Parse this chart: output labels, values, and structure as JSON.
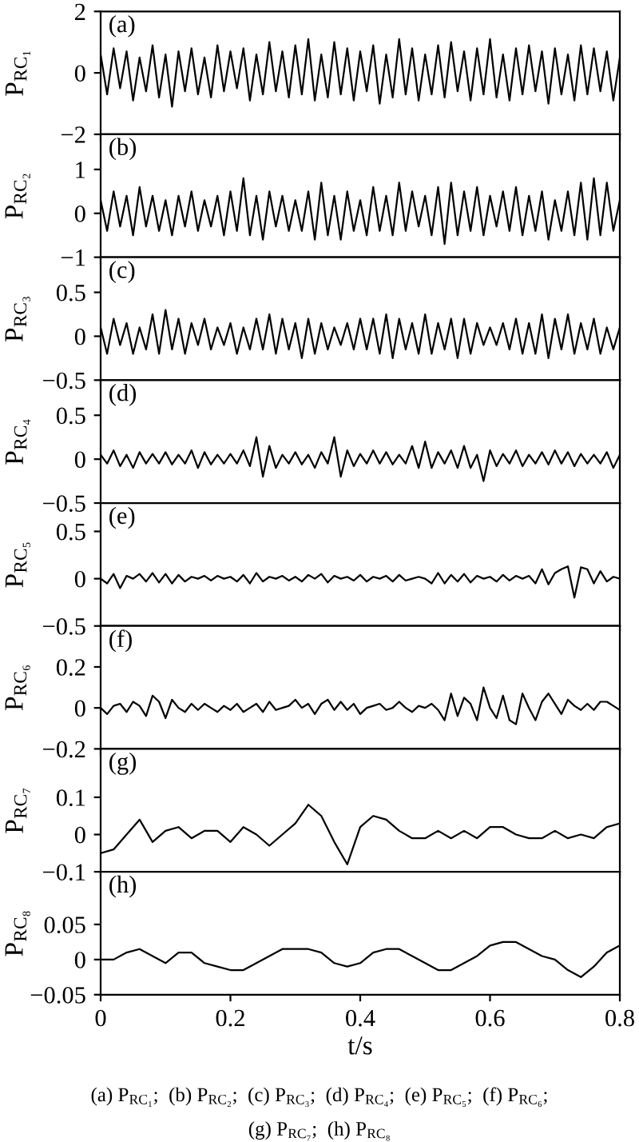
{
  "chart_data": [
    {
      "type": "line",
      "xlim": [
        0,
        0.8
      ],
      "xticks": [
        0,
        0.2,
        0.4,
        0.6,
        0.8
      ],
      "tick_labels": "y",
      "ylabel": "P$_{RC₁}$",
      "ylim": [
        -2,
        2
      ],
      "yticks": [
        -2,
        0,
        2
      ],
      "annotations": [
        "(a)"
      ],
      "x": [
        0,
        0.01,
        0.02,
        0.03,
        0.04,
        0.05,
        0.06,
        0.07,
        0.08,
        0.09,
        0.1,
        0.11,
        0.12,
        0.13,
        0.14,
        0.15,
        0.16,
        0.17,
        0.18,
        0.19,
        0.2,
        0.21,
        0.22,
        0.23,
        0.24,
        0.25,
        0.26,
        0.27,
        0.28,
        0.29,
        0.3,
        0.31,
        0.32,
        0.33,
        0.34,
        0.35,
        0.36,
        0.37,
        0.38,
        0.39,
        0.4,
        0.41,
        0.42,
        0.43,
        0.44,
        0.45,
        0.46,
        0.47,
        0.48,
        0.49,
        0.5,
        0.51,
        0.52,
        0.53,
        0.54,
        0.55,
        0.56,
        0.57,
        0.58,
        0.59,
        0.6,
        0.61,
        0.62,
        0.63,
        0.64,
        0.65,
        0.66,
        0.67,
        0.68,
        0.69,
        0.7,
        0.71,
        0.72,
        0.73,
        0.74,
        0.75,
        0.76,
        0.77,
        0.78,
        0.79,
        0.8
      ],
      "series": [
        {
          "color": "#000000",
          "values": [
            0.6,
            -0.7,
            0.8,
            -0.5,
            0.7,
            -0.9,
            0.5,
            -0.6,
            0.9,
            -0.8,
            0.6,
            -1.1,
            0.7,
            -0.6,
            0.8,
            -0.7,
            0.5,
            -0.8,
            0.9,
            -0.6,
            0.7,
            -0.5,
            0.8,
            -0.9,
            0.6,
            -0.7,
            1.0,
            -0.6,
            0.7,
            -0.8,
            0.9,
            -0.7,
            1.1,
            -0.9,
            0.6,
            -0.8,
            1.0,
            -0.7,
            0.8,
            -0.9,
            0.7,
            -0.6,
            0.9,
            -1.0,
            0.6,
            -0.8,
            1.1,
            -0.7,
            0.8,
            -0.9,
            0.6,
            -0.7,
            0.9,
            -0.8,
            1.0,
            -0.6,
            0.7,
            -0.9,
            0.8,
            -0.7,
            1.1,
            -0.8,
            0.6,
            -0.9,
            0.8,
            -0.7,
            0.9,
            -0.6,
            0.7,
            -1.0,
            0.8,
            -0.7,
            0.6,
            -0.9,
            0.9,
            -0.7,
            0.8,
            -0.6,
            0.7,
            -0.9,
            0.5
          ]
        }
      ]
    },
    {
      "type": "line",
      "xlim": [
        0,
        0.8
      ],
      "xticks": [
        0,
        0.2,
        0.4,
        0.6,
        0.8
      ],
      "tick_labels": "y",
      "ylabel": "P$_{RC₂}$",
      "ylim": [
        -1,
        1.8
      ],
      "yticks": [
        -1,
        0,
        1
      ],
      "annotations": [
        "(b)"
      ],
      "x": [
        0,
        0.01,
        0.02,
        0.03,
        0.04,
        0.05,
        0.06,
        0.07,
        0.08,
        0.09,
        0.1,
        0.11,
        0.12,
        0.13,
        0.14,
        0.15,
        0.16,
        0.17,
        0.18,
        0.19,
        0.2,
        0.21,
        0.22,
        0.23,
        0.24,
        0.25,
        0.26,
        0.27,
        0.28,
        0.29,
        0.3,
        0.31,
        0.32,
        0.33,
        0.34,
        0.35,
        0.36,
        0.37,
        0.38,
        0.39,
        0.4,
        0.41,
        0.42,
        0.43,
        0.44,
        0.45,
        0.46,
        0.47,
        0.48,
        0.49,
        0.5,
        0.51,
        0.52,
        0.53,
        0.54,
        0.55,
        0.56,
        0.57,
        0.58,
        0.59,
        0.6,
        0.61,
        0.62,
        0.63,
        0.64,
        0.65,
        0.66,
        0.67,
        0.68,
        0.69,
        0.7,
        0.71,
        0.72,
        0.73,
        0.74,
        0.75,
        0.76,
        0.77,
        0.78,
        0.79,
        0.8
      ],
      "series": [
        {
          "color": "#000000",
          "values": [
            0.3,
            -0.4,
            0.5,
            -0.3,
            0.4,
            -0.5,
            0.6,
            -0.3,
            0.4,
            -0.4,
            0.3,
            -0.5,
            0.4,
            -0.3,
            0.5,
            -0.4,
            0.3,
            -0.3,
            0.4,
            -0.5,
            0.5,
            -0.4,
            0.8,
            -0.5,
            0.4,
            -0.6,
            0.5,
            -0.3,
            0.4,
            -0.4,
            0.3,
            -0.4,
            0.5,
            -0.6,
            0.7,
            -0.5,
            0.4,
            -0.6,
            0.5,
            -0.4,
            0.3,
            -0.5,
            0.6,
            -0.4,
            0.4,
            -0.5,
            0.7,
            -0.4,
            0.5,
            -0.3,
            0.4,
            -0.5,
            0.6,
            -0.7,
            0.7,
            -0.5,
            0.5,
            -0.4,
            0.6,
            -0.5,
            0.4,
            -0.3,
            0.5,
            -0.4,
            0.6,
            -0.5,
            0.4,
            -0.4,
            0.5,
            -0.6,
            0.3,
            -0.4,
            0.5,
            -0.5,
            0.7,
            -0.6,
            0.8,
            -0.5,
            0.7,
            -0.4,
            0.3
          ]
        }
      ]
    },
    {
      "type": "line",
      "xlim": [
        0,
        0.8
      ],
      "xticks": [
        0,
        0.2,
        0.4,
        0.6,
        0.8
      ],
      "tick_labels": "y",
      "ylabel": "P$_{RC₃}$",
      "ylim": [
        -0.5,
        0.9
      ],
      "yticks": [
        -0.5,
        0,
        0.5
      ],
      "annotations": [
        "(c)"
      ],
      "x": [
        0,
        0.01,
        0.02,
        0.03,
        0.04,
        0.05,
        0.06,
        0.07,
        0.08,
        0.09,
        0.1,
        0.11,
        0.12,
        0.13,
        0.14,
        0.15,
        0.16,
        0.17,
        0.18,
        0.19,
        0.2,
        0.21,
        0.22,
        0.23,
        0.24,
        0.25,
        0.26,
        0.27,
        0.28,
        0.29,
        0.3,
        0.31,
        0.32,
        0.33,
        0.34,
        0.35,
        0.36,
        0.37,
        0.38,
        0.39,
        0.4,
        0.41,
        0.42,
        0.43,
        0.44,
        0.45,
        0.46,
        0.47,
        0.48,
        0.49,
        0.5,
        0.51,
        0.52,
        0.53,
        0.54,
        0.55,
        0.56,
        0.57,
        0.58,
        0.59,
        0.6,
        0.61,
        0.62,
        0.63,
        0.64,
        0.65,
        0.66,
        0.67,
        0.68,
        0.69,
        0.7,
        0.71,
        0.72,
        0.73,
        0.74,
        0.75,
        0.76,
        0.77,
        0.78,
        0.79,
        0.8
      ],
      "series": [
        {
          "color": "#000000",
          "values": [
            0.1,
            -0.2,
            0.2,
            -0.1,
            0.15,
            -0.2,
            0.1,
            -0.15,
            0.25,
            -0.2,
            0.3,
            -0.15,
            0.2,
            -0.2,
            0.15,
            -0.1,
            0.2,
            -0.15,
            0.1,
            -0.1,
            0.15,
            -0.2,
            0.1,
            -0.15,
            0.2,
            -0.15,
            0.25,
            -0.2,
            0.2,
            -0.15,
            0.15,
            -0.25,
            0.2,
            -0.2,
            0.15,
            -0.15,
            0.1,
            -0.1,
            0.15,
            -0.15,
            0.2,
            -0.15,
            0.2,
            -0.2,
            0.25,
            -0.25,
            0.2,
            -0.15,
            0.15,
            -0.2,
            0.25,
            -0.2,
            0.15,
            -0.15,
            0.2,
            -0.25,
            0.2,
            -0.2,
            0.15,
            -0.1,
            0.1,
            -0.1,
            0.15,
            -0.15,
            0.2,
            -0.2,
            0.15,
            -0.2,
            0.25,
            -0.25,
            0.2,
            -0.15,
            0.25,
            -0.2,
            0.15,
            -0.15,
            0.2,
            -0.2,
            0.1,
            -0.15,
            0.1
          ]
        }
      ]
    },
    {
      "type": "line",
      "xlim": [
        0,
        0.8
      ],
      "xticks": [
        0,
        0.2,
        0.4,
        0.6,
        0.8
      ],
      "tick_labels": "y",
      "ylabel": "P$_{RC₄}$",
      "ylim": [
        -0.5,
        0.9
      ],
      "yticks": [
        -0.5,
        0,
        0.5
      ],
      "annotations": [
        "(d)"
      ],
      "x": [
        0,
        0.01,
        0.02,
        0.03,
        0.04,
        0.05,
        0.06,
        0.07,
        0.08,
        0.09,
        0.1,
        0.11,
        0.12,
        0.13,
        0.14,
        0.15,
        0.16,
        0.17,
        0.18,
        0.19,
        0.2,
        0.21,
        0.22,
        0.23,
        0.24,
        0.25,
        0.26,
        0.27,
        0.28,
        0.29,
        0.3,
        0.31,
        0.32,
        0.33,
        0.34,
        0.35,
        0.36,
        0.37,
        0.38,
        0.39,
        0.4,
        0.41,
        0.42,
        0.43,
        0.44,
        0.45,
        0.46,
        0.47,
        0.48,
        0.49,
        0.5,
        0.51,
        0.52,
        0.53,
        0.54,
        0.55,
        0.56,
        0.57,
        0.58,
        0.59,
        0.6,
        0.61,
        0.62,
        0.63,
        0.64,
        0.65,
        0.66,
        0.67,
        0.68,
        0.69,
        0.7,
        0.71,
        0.72,
        0.73,
        0.74,
        0.75,
        0.76,
        0.77,
        0.78,
        0.79,
        0.8
      ],
      "series": [
        {
          "color": "#000000",
          "values": [
            0.05,
            -0.05,
            0.1,
            -0.08,
            0.05,
            -0.1,
            0.08,
            -0.05,
            0.06,
            -0.05,
            0.08,
            -0.06,
            0.05,
            -0.05,
            0.1,
            -0.1,
            0.08,
            -0.06,
            0.05,
            -0.05,
            0.06,
            -0.05,
            0.1,
            -0.08,
            0.25,
            -0.2,
            0.15,
            -0.1,
            0.05,
            -0.05,
            0.08,
            -0.06,
            0.05,
            -0.1,
            0.08,
            -0.05,
            0.25,
            -0.2,
            0.1,
            -0.08,
            0.06,
            -0.05,
            0.1,
            -0.05,
            0.08,
            -0.06,
            0.05,
            -0.05,
            0.15,
            -0.1,
            0.2,
            -0.1,
            0.08,
            -0.05,
            0.1,
            -0.1,
            0.15,
            -0.1,
            0.05,
            -0.25,
            0.1,
            -0.08,
            0.06,
            -0.05,
            0.1,
            -0.08,
            0.05,
            -0.05,
            0.08,
            -0.06,
            0.1,
            -0.05,
            0.08,
            -0.08,
            0.06,
            -0.05,
            0.05,
            -0.05,
            0.08,
            -0.1,
            0.05
          ]
        }
      ]
    },
    {
      "type": "line",
      "xlim": [
        0,
        0.8
      ],
      "xticks": [
        0,
        0.2,
        0.4,
        0.6,
        0.8
      ],
      "tick_labels": "y",
      "ylabel": "P$_{RC₅}$",
      "ylim": [
        -0.5,
        0.8
      ],
      "yticks": [
        -0.5,
        0,
        0.5
      ],
      "annotations": [
        "(e)"
      ],
      "x": [
        0,
        0.01,
        0.02,
        0.03,
        0.04,
        0.05,
        0.06,
        0.07,
        0.08,
        0.09,
        0.1,
        0.11,
        0.12,
        0.13,
        0.14,
        0.15,
        0.16,
        0.17,
        0.18,
        0.19,
        0.2,
        0.21,
        0.22,
        0.23,
        0.24,
        0.25,
        0.26,
        0.27,
        0.28,
        0.29,
        0.3,
        0.31,
        0.32,
        0.33,
        0.34,
        0.35,
        0.36,
        0.37,
        0.38,
        0.39,
        0.4,
        0.41,
        0.42,
        0.43,
        0.44,
        0.45,
        0.46,
        0.47,
        0.48,
        0.49,
        0.5,
        0.51,
        0.52,
        0.53,
        0.54,
        0.55,
        0.56,
        0.57,
        0.58,
        0.59,
        0.6,
        0.61,
        0.62,
        0.63,
        0.64,
        0.65,
        0.66,
        0.67,
        0.68,
        0.69,
        0.7,
        0.71,
        0.72,
        0.73,
        0.74,
        0.75,
        0.76,
        0.77,
        0.78,
        0.79,
        0.8
      ],
      "series": [
        {
          "color": "#000000",
          "values": [
            0,
            -0.05,
            0.05,
            -0.1,
            0.03,
            0,
            0.05,
            -0.03,
            0.06,
            -0.04,
            0.05,
            -0.05,
            0.04,
            -0.03,
            0.02,
            0,
            0.03,
            -0.02,
            0.03,
            0,
            0.02,
            -0.03,
            0.04,
            -0.05,
            0.06,
            -0.03,
            0.02,
            0,
            0.03,
            -0.02,
            0.02,
            -0.03,
            0.04,
            0,
            0.05,
            -0.04,
            0.03,
            0,
            0.02,
            -0.02,
            0.04,
            -0.03,
            0.02,
            0,
            0.03,
            -0.03,
            0.04,
            -0.02,
            0,
            0.02,
            0,
            -0.05,
            0.06,
            -0.05,
            0.04,
            -0.03,
            0.05,
            -0.04,
            0.03,
            0,
            0.02,
            -0.03,
            0.04,
            -0.02,
            0.03,
            0,
            0.03,
            -0.05,
            0.1,
            -0.06,
            0.06,
            0.1,
            0.13,
            -0.2,
            0.12,
            0.1,
            -0.05,
            0.08,
            -0.03,
            0.02,
            0
          ]
        }
      ]
    },
    {
      "type": "line",
      "xlim": [
        0,
        0.8
      ],
      "xticks": [
        0,
        0.2,
        0.4,
        0.6,
        0.8
      ],
      "tick_labels": "y",
      "ylabel": "P$_{RC₆}$",
      "ylim": [
        -0.2,
        0.4
      ],
      "yticks": [
        -0.2,
        0,
        0.2
      ],
      "annotations": [
        "(f)"
      ],
      "x": [
        0,
        0.01,
        0.02,
        0.03,
        0.04,
        0.05,
        0.06,
        0.07,
        0.08,
        0.09,
        0.1,
        0.11,
        0.12,
        0.13,
        0.14,
        0.15,
        0.16,
        0.17,
        0.18,
        0.19,
        0.2,
        0.21,
        0.22,
        0.23,
        0.24,
        0.25,
        0.26,
        0.27,
        0.28,
        0.29,
        0.3,
        0.31,
        0.32,
        0.33,
        0.34,
        0.35,
        0.36,
        0.37,
        0.38,
        0.39,
        0.4,
        0.41,
        0.42,
        0.43,
        0.44,
        0.45,
        0.46,
        0.47,
        0.48,
        0.49,
        0.5,
        0.51,
        0.52,
        0.53,
        0.54,
        0.55,
        0.56,
        0.57,
        0.58,
        0.59,
        0.6,
        0.61,
        0.62,
        0.63,
        0.64,
        0.65,
        0.66,
        0.67,
        0.68,
        0.69,
        0.7,
        0.71,
        0.72,
        0.73,
        0.74,
        0.75,
        0.76,
        0.77,
        0.78,
        0.79,
        0.8
      ],
      "series": [
        {
          "color": "#000000",
          "values": [
            0,
            -0.03,
            0.01,
            0.02,
            -0.02,
            0.03,
            0.01,
            -0.04,
            0.06,
            0.03,
            -0.05,
            0.04,
            0,
            -0.02,
            0.02,
            -0.01,
            0.02,
            0,
            -0.02,
            0.01,
            -0.01,
            0.02,
            -0.02,
            0,
            0.02,
            -0.02,
            0.03,
            -0.01,
            0,
            0.01,
            0.04,
            0,
            0.02,
            -0.03,
            0.02,
            0.04,
            -0.01,
            0.03,
            -0.01,
            0.02,
            -0.03,
            0,
            0.01,
            0.02,
            -0.01,
            0,
            0.03,
            0,
            -0.02,
            0.01,
            0,
            0.02,
            -0.01,
            -0.06,
            0.07,
            -0.04,
            0.05,
            0.02,
            -0.06,
            0.1,
            0,
            -0.05,
            0.06,
            -0.06,
            -0.08,
            0.07,
            0,
            -0.06,
            0.03,
            0.07,
            0.02,
            -0.03,
            0.04,
            0.01,
            -0.01,
            0.02,
            -0.01,
            0.03,
            0.03,
            0.01,
            -0.01
          ]
        }
      ]
    },
    {
      "type": "line",
      "xlim": [
        0,
        0.8
      ],
      "xticks": [
        0,
        0.2,
        0.4,
        0.6,
        0.8
      ],
      "tick_labels": "y",
      "ylabel": "P$_{RC₇}$",
      "ylim": [
        -0.1,
        0.23
      ],
      "yticks": [
        -0.1,
        0,
        0.1
      ],
      "annotations": [
        "(g)"
      ],
      "x": [
        0,
        0.02,
        0.04,
        0.06,
        0.08,
        0.1,
        0.12,
        0.14,
        0.16,
        0.18,
        0.2,
        0.22,
        0.24,
        0.26,
        0.28,
        0.3,
        0.32,
        0.34,
        0.36,
        0.38,
        0.4,
        0.42,
        0.44,
        0.46,
        0.48,
        0.5,
        0.52,
        0.54,
        0.56,
        0.58,
        0.6,
        0.62,
        0.64,
        0.66,
        0.68,
        0.7,
        0.72,
        0.74,
        0.76,
        0.78,
        0.8
      ],
      "series": [
        {
          "color": "#000000",
          "values": [
            -0.05,
            -0.04,
            0.0,
            0.04,
            -0.02,
            0.01,
            0.02,
            -0.01,
            0.01,
            0.01,
            -0.02,
            0.02,
            0.0,
            -0.03,
            0.0,
            0.03,
            0.08,
            0.05,
            -0.02,
            -0.08,
            0.02,
            0.05,
            0.04,
            0.01,
            -0.01,
            -0.01,
            0.01,
            -0.01,
            0.01,
            -0.01,
            0.02,
            0.02,
            0.0,
            -0.01,
            -0.01,
            0.01,
            -0.01,
            0.0,
            -0.01,
            0.02,
            0.03
          ]
        }
      ]
    },
    {
      "type": "line",
      "xlim": [
        0,
        0.8
      ],
      "xticks": [
        0,
        0.2,
        0.4,
        0.6,
        0.8
      ],
      "xlabel": "t/s",
      "ylabel": "P$_{RC₈}$",
      "ylim": [
        -0.05,
        0.125
      ],
      "yticks": [
        -0.05,
        0,
        0.05
      ],
      "annotations": [
        "(h)",
        "(a) P$_{RC₁}$;  (b) P$_{RC₂}$;  (c) P$_{RC₃}$;  (d) P$_{RC₄}$;  (e) P$_{RC₅}$;  (f) P$_{RC₆}$;",
        "(g) P$_{RC₇}$;  (h) P$_{RC₈}$"
      ],
      "x": [
        0,
        0.02,
        0.04,
        0.06,
        0.08,
        0.1,
        0.12,
        0.14,
        0.16,
        0.18,
        0.2,
        0.22,
        0.24,
        0.26,
        0.28,
        0.3,
        0.32,
        0.34,
        0.36,
        0.38,
        0.4,
        0.42,
        0.44,
        0.46,
        0.48,
        0.5,
        0.52,
        0.54,
        0.56,
        0.58,
        0.6,
        0.62,
        0.64,
        0.66,
        0.68,
        0.7,
        0.72,
        0.74,
        0.76,
        0.78,
        0.8
      ],
      "series": [
        {
          "color": "#000000",
          "values": [
            0,
            0,
            0.01,
            0.015,
            0.005,
            -0.005,
            0.01,
            0.01,
            -0.005,
            -0.01,
            -0.015,
            -0.015,
            -0.005,
            0.005,
            0.015,
            0.015,
            0.015,
            0.01,
            -0.005,
            -0.01,
            -0.005,
            0.01,
            0.015,
            0.015,
            0.005,
            -0.005,
            -0.015,
            -0.015,
            -0.005,
            0.005,
            0.02,
            0.025,
            0.025,
            0.015,
            0.005,
            0.0,
            -0.015,
            -0.025,
            -0.01,
            0.01,
            0.02
          ]
        }
      ]
    }
  ]
}
